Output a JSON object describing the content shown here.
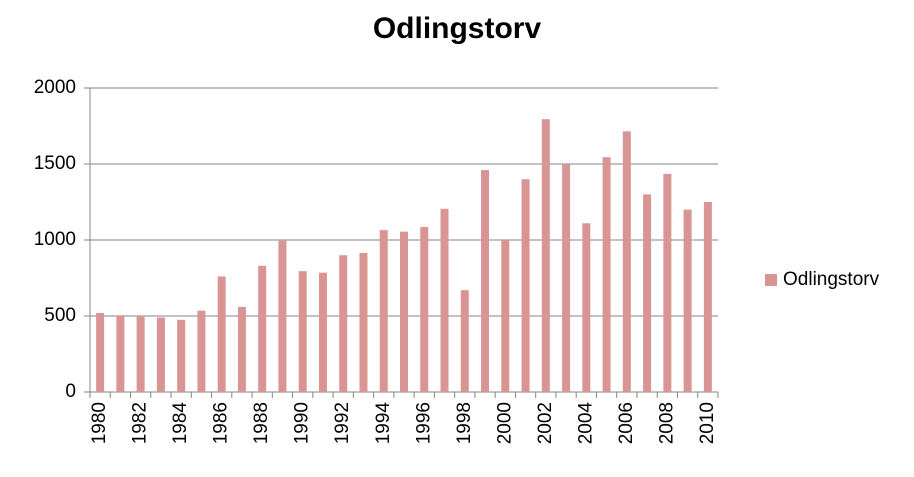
{
  "chart_data": {
    "type": "bar",
    "title": "Odlingstorv",
    "categories": [
      "1980",
      null,
      "1982",
      null,
      "1984",
      null,
      "1986",
      null,
      "1988",
      null,
      "1990",
      null,
      "1992",
      null,
      "1994",
      null,
      "1996",
      null,
      "1998",
      null,
      "2000",
      null,
      "2002",
      null,
      "2004",
      null,
      "2006",
      null,
      "2008",
      null,
      "2010"
    ],
    "series": [
      {
        "name": "Odlingstorv",
        "color": "#d99594",
        "values": [
          520,
          505,
          495,
          490,
          475,
          535,
          760,
          560,
          830,
          995,
          795,
          785,
          900,
          915,
          1065,
          1055,
          1085,
          1205,
          670,
          1460,
          1000,
          1400,
          1795,
          1500,
          1110,
          1545,
          1715,
          1300,
          1435,
          1200,
          1250
        ]
      }
    ],
    "ylim": [
      0,
      2000
    ],
    "yticks": [
      0,
      500,
      1000,
      1500,
      2000
    ],
    "grid": true,
    "legend": "right"
  }
}
